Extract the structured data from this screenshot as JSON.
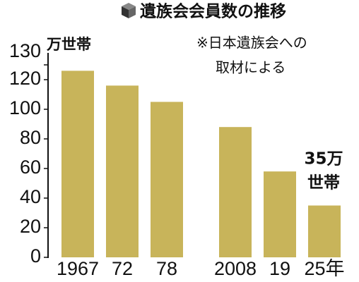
{
  "chart_data": {
    "type": "bar",
    "title": "遺族会会員数の推移",
    "unit_label": "万世帯",
    "note": [
      "※日本遺族会への",
      "取材による"
    ],
    "annotation": [
      "35万",
      "世帯"
    ],
    "categories": [
      "1967",
      "72",
      "78",
      "2008",
      "19",
      "25年"
    ],
    "values": [
      126,
      116,
      105,
      88,
      58,
      35
    ],
    "color": "#c8b45a",
    "ylim": [
      0,
      130
    ],
    "yticks": [
      0,
      20,
      40,
      60,
      80,
      100,
      120,
      130
    ],
    "grid": false
  }
}
